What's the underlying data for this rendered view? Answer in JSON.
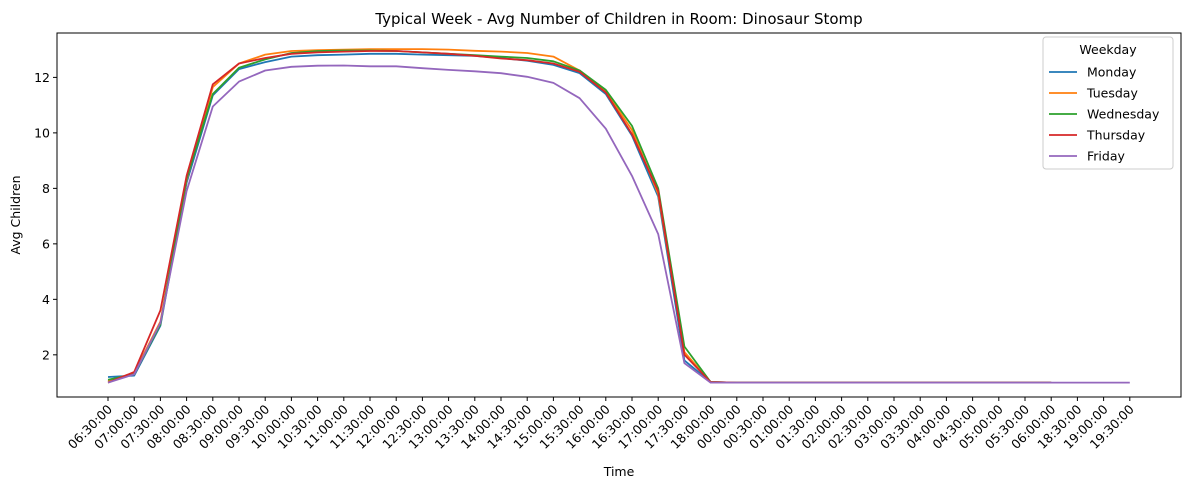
{
  "chart_data": {
    "type": "line",
    "title": "Typical Week - Avg Number of Children in Room: Dinosaur Stomp",
    "xlabel": "Time",
    "ylabel": "Avg Children",
    "ylim": [
      0.48,
      13.6
    ],
    "yticks": [
      2,
      4,
      6,
      8,
      10,
      12
    ],
    "grid": false,
    "legend": {
      "title": "Weekday",
      "position": "top-right"
    },
    "categories": [
      "06:30:00",
      "07:00:00",
      "07:30:00",
      "08:00:00",
      "08:30:00",
      "09:00:00",
      "09:30:00",
      "10:00:00",
      "10:30:00",
      "11:00:00",
      "11:30:00",
      "12:00:00",
      "12:30:00",
      "13:00:00",
      "13:30:00",
      "14:00:00",
      "14:30:00",
      "15:00:00",
      "15:30:00",
      "16:00:00",
      "16:30:00",
      "17:00:00",
      "17:30:00",
      "18:00:00",
      "00:00:00",
      "00:30:00",
      "01:00:00",
      "01:30:00",
      "02:00:00",
      "02:30:00",
      "03:00:00",
      "03:30:00",
      "04:00:00",
      "04:30:00",
      "05:00:00",
      "05:30:00",
      "06:00:00",
      "18:30:00",
      "19:00:00",
      "19:30:00"
    ],
    "series": [
      {
        "name": "Monday",
        "color": "#1f77b4",
        "values": [
          1.2,
          1.25,
          3.05,
          8.2,
          11.35,
          12.3,
          12.55,
          12.75,
          12.8,
          12.82,
          12.85,
          12.85,
          12.82,
          12.8,
          12.78,
          12.7,
          12.6,
          12.45,
          12.15,
          11.4,
          9.9,
          7.7,
          1.8,
          1.02,
          1.0,
          1.0,
          1.0,
          1.0,
          1.0,
          1.0,
          1.0,
          1.0,
          1.0,
          1.0,
          1.0,
          1.0,
          1.0,
          null,
          null,
          null
        ]
      },
      {
        "name": "Tuesday",
        "color": "#ff7f0e",
        "values": [
          1.05,
          1.35,
          3.2,
          8.3,
          11.65,
          12.5,
          12.82,
          12.95,
          12.98,
          13.0,
          13.02,
          13.02,
          13.02,
          13.0,
          12.96,
          12.93,
          12.88,
          12.75,
          12.25,
          11.5,
          10.1,
          7.8,
          2.1,
          1.02,
          1.0,
          1.0,
          1.0,
          1.0,
          1.0,
          1.0,
          1.0,
          1.0,
          1.0,
          1.0,
          1.0,
          1.0,
          1.0,
          null,
          null,
          null
        ]
      },
      {
        "name": "Wednesday",
        "color": "#2ca02c",
        "values": [
          1.1,
          1.3,
          3.1,
          8.35,
          11.4,
          12.35,
          12.65,
          12.88,
          12.95,
          12.97,
          12.97,
          12.95,
          12.9,
          12.85,
          12.8,
          12.75,
          12.7,
          12.58,
          12.25,
          11.55,
          10.25,
          8.0,
          2.3,
          1.02,
          1.0,
          1.0,
          1.0,
          1.0,
          1.0,
          1.0,
          1.0,
          1.0,
          1.0,
          1.0,
          1.0,
          1.0,
          1.0,
          null,
          null,
          null
        ]
      },
      {
        "name": "Thursday",
        "color": "#d62728",
        "values": [
          1.0,
          1.38,
          3.6,
          8.45,
          11.75,
          12.5,
          12.7,
          12.85,
          12.9,
          12.93,
          12.95,
          12.95,
          12.9,
          12.85,
          12.78,
          12.68,
          12.62,
          12.5,
          12.2,
          11.45,
          9.95,
          7.9,
          2.0,
          1.02,
          1.0,
          1.0,
          1.0,
          1.0,
          1.0,
          1.0,
          1.0,
          1.0,
          1.0,
          1.0,
          1.0,
          1.0,
          1.0,
          null,
          null,
          null
        ]
      },
      {
        "name": "Friday",
        "color": "#9467bd",
        "values": [
          1.0,
          1.3,
          3.15,
          7.9,
          10.95,
          11.85,
          12.25,
          12.38,
          12.42,
          12.43,
          12.4,
          12.4,
          12.33,
          12.27,
          12.22,
          12.15,
          12.02,
          11.8,
          11.25,
          10.15,
          8.45,
          6.35,
          1.7,
          1.0,
          1.0,
          1.0,
          1.0,
          1.0,
          1.0,
          1.0,
          1.0,
          1.0,
          1.0,
          1.0,
          1.0,
          1.0,
          1.0,
          1.0,
          1.0,
          1.0
        ]
      }
    ]
  }
}
